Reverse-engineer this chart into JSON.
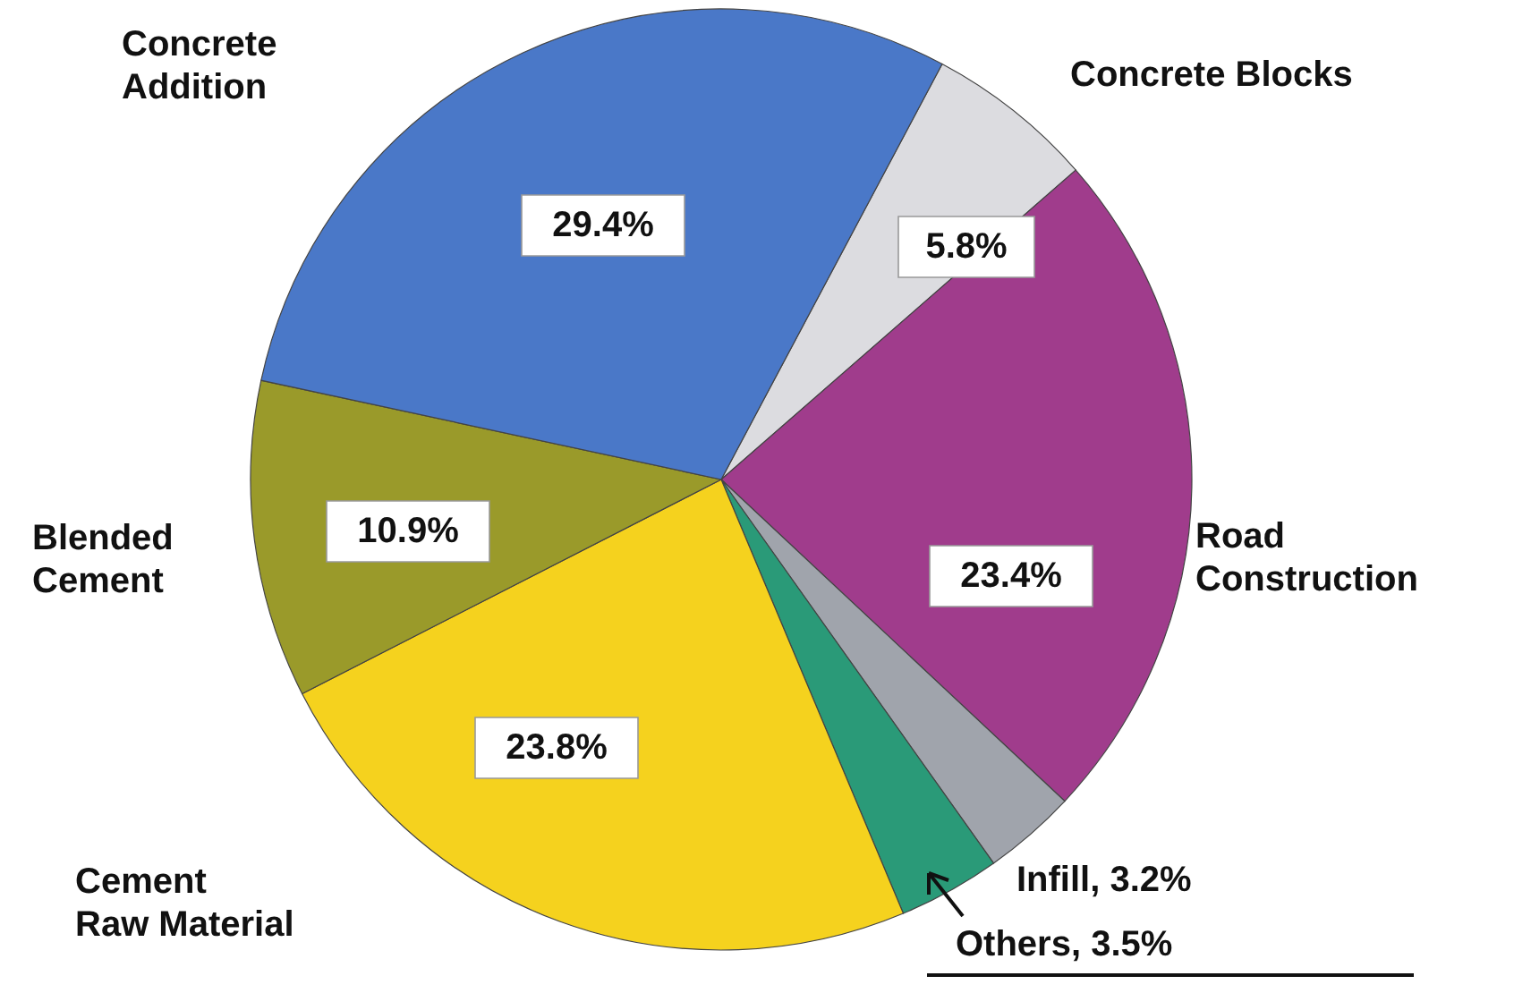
{
  "chart_data": {
    "type": "pie",
    "categories": [
      "Concrete Blocks",
      "Road Construction",
      "Infill",
      "Others",
      "Cement Raw Material",
      "Blended Cement",
      "Concrete Addition"
    ],
    "values": [
      5.8,
      23.4,
      3.2,
      3.5,
      23.8,
      10.9,
      29.4
    ],
    "value_labels": [
      "5.8%",
      "23.4%",
      "3.2%",
      "3.5%",
      "23.8%",
      "10.9%",
      "29.4%"
    ],
    "colors": [
      "#dcdce0",
      "#a03c8c",
      "#a0a4ac",
      "#2a9a78",
      "#f5d21e",
      "#9a9a2a",
      "#4a78c8"
    ]
  }
}
